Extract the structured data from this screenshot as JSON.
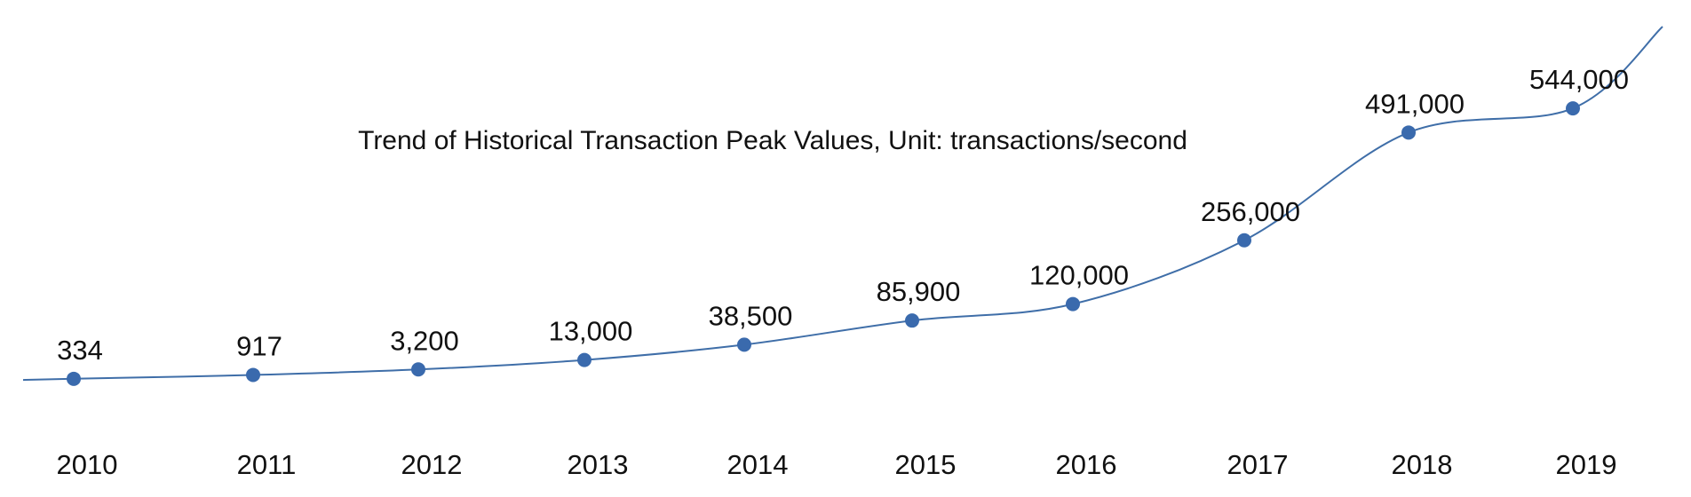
{
  "chart_data": {
    "type": "line",
    "title": "Trend of Historical Transaction Peak Values, Unit: transactions/second",
    "categories": [
      "2010",
      "2011",
      "2012",
      "2013",
      "2014",
      "2015",
      "2016",
      "2017",
      "2018",
      "2019"
    ],
    "values": [
      334,
      917,
      3200,
      13000,
      38500,
      85900,
      120000,
      256000,
      491000,
      544000
    ],
    "value_labels": [
      "334",
      "917",
      "3,200",
      "13,000",
      "38,500",
      "85,900",
      "120,000",
      "256,000",
      "491,000",
      "544,000"
    ],
    "xlabel": "",
    "ylabel": "",
    "grid": false,
    "legend": "none",
    "colors": {
      "line": "#3f6ea8",
      "marker": "#3a6aad"
    }
  }
}
